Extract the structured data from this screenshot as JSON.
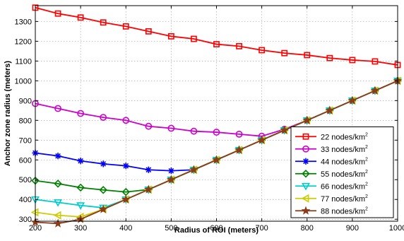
{
  "chart_data": {
    "type": "line",
    "title": "",
    "xlabel": "Radius of ROI (meters)",
    "ylabel": "Anchor zone radius (meters)",
    "xlim": [
      200,
      1000
    ],
    "ylim": [
      290,
      1380
    ],
    "x_ticks": [
      200,
      300,
      400,
      500,
      600,
      700,
      800,
      900,
      1000
    ],
    "y_ticks": [
      300,
      400,
      500,
      600,
      700,
      800,
      900,
      1000,
      1100,
      1200,
      1300
    ],
    "grid": true,
    "legend_position": "bottom-right",
    "x": [
      200,
      250,
      300,
      350,
      400,
      450,
      500,
      550,
      600,
      650,
      700,
      750,
      800,
      850,
      900,
      950,
      1000
    ],
    "series": [
      {
        "name": "22 nodes/km",
        "sup": "2",
        "color": "#ff0000",
        "marker": "square",
        "values": [
          1370,
          1340,
          1320,
          1295,
          1275,
          1250,
          1225,
          1212,
          1185,
          1175,
          1155,
          1140,
          1130,
          1115,
          1105,
          1098,
          1080
        ]
      },
      {
        "name": "33 nodes/km",
        "sup": "2",
        "color": "#cc00cc",
        "marker": "circle",
        "values": [
          885,
          860,
          835,
          815,
          800,
          770,
          760,
          745,
          740,
          730,
          720,
          755,
          800,
          850,
          900,
          950,
          1000
        ]
      },
      {
        "name": "44 nodes/km",
        "sup": "2",
        "color": "#0000ff",
        "marker": "asterisk",
        "values": [
          635,
          620,
          595,
          580,
          570,
          550,
          545,
          550,
          600,
          650,
          700,
          750,
          800,
          850,
          900,
          950,
          1000
        ]
      },
      {
        "name": "55 nodes/km",
        "sup": "2",
        "color": "#008000",
        "marker": "diamond",
        "values": [
          495,
          480,
          460,
          448,
          438,
          450,
          500,
          550,
          600,
          650,
          700,
          750,
          800,
          850,
          900,
          950,
          1000
        ]
      },
      {
        "name": "66 nodes/km",
        "sup": "2",
        "color": "#00cccc",
        "marker": "triangle-down",
        "values": [
          400,
          385,
          370,
          358,
          400,
          450,
          500,
          550,
          600,
          650,
          700,
          750,
          800,
          850,
          900,
          950,
          1000
        ]
      },
      {
        "name": "77 nodes/km",
        "sup": "2",
        "color": "#cccc00",
        "marker": "triangle-left",
        "values": [
          335,
          320,
          312,
          350,
          400,
          450,
          500,
          550,
          600,
          650,
          700,
          750,
          800,
          850,
          900,
          950,
          1000
        ]
      },
      {
        "name": "88 nodes/km",
        "sup": "2",
        "color": "#8b3a1a",
        "marker": "star",
        "values": [
          285,
          278,
          300,
          350,
          400,
          450,
          500,
          550,
          600,
          650,
          700,
          750,
          800,
          850,
          900,
          950,
          1000
        ]
      }
    ]
  }
}
